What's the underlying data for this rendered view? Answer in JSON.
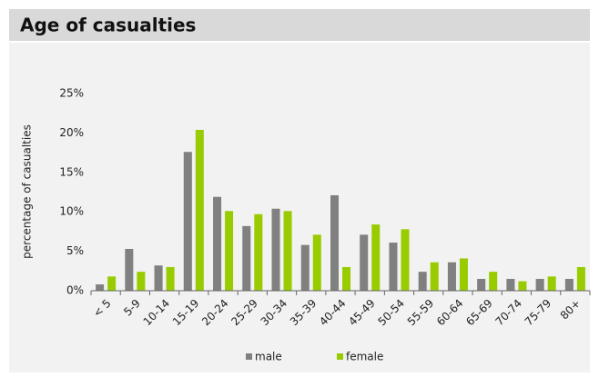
{
  "chart_data": {
    "type": "bar",
    "title": "Age of casualties",
    "y_label": "percentage of casualties",
    "categories": [
      "< 5",
      "5-9",
      "10-14",
      "15-19",
      "20-24",
      "25-29",
      "30-34",
      "35-39",
      "40-44",
      "45-49",
      "50-54",
      "55-59",
      "60-64",
      "65-69",
      "70-74",
      "75-79",
      "80+"
    ],
    "series": [
      {
        "name": "male",
        "color": "#808080",
        "values": [
          0.8,
          5.3,
          3.2,
          17.6,
          11.9,
          8.2,
          10.4,
          5.8,
          12.1,
          7.1,
          6.1,
          2.4,
          3.6,
          1.5,
          1.5,
          1.5,
          1.5
        ]
      },
      {
        "name": "female",
        "color": "#99cc00",
        "values": [
          1.8,
          2.4,
          3.0,
          20.4,
          10.1,
          9.7,
          10.1,
          7.1,
          3.0,
          8.4,
          7.8,
          3.6,
          4.1,
          2.4,
          1.2,
          1.8,
          3.0
        ]
      }
    ],
    "ylim": [
      0,
      25
    ],
    "yticks": [
      {
        "value": 0,
        "label": "0%"
      },
      {
        "value": 5,
        "label": "5%"
      },
      {
        "value": 10,
        "label": "10%"
      },
      {
        "value": 15,
        "label": "15%"
      },
      {
        "value": 20,
        "label": "20%"
      },
      {
        "value": 25,
        "label": "25%"
      }
    ],
    "grid": false,
    "legend": "bottom"
  }
}
